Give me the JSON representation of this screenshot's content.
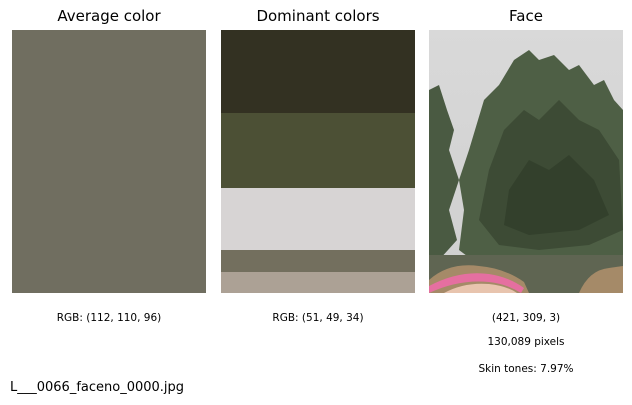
{
  "panels": {
    "average": {
      "title": "Average color",
      "color": "#706e60",
      "caption": "RGB: (112, 110, 96)"
    },
    "dominant": {
      "title": "Dominant colors",
      "caption": "RGB: (51, 49, 34)",
      "stripes": [
        {
          "color": "#333122",
          "share": 0.316
        },
        {
          "color": "#4c5035",
          "share": 0.285
        },
        {
          "color": "#d7d4d4",
          "share": 0.236
        },
        {
          "color": "#736f5e",
          "share": 0.084
        },
        {
          "color": "#aca195",
          "share": 0.079
        }
      ]
    },
    "face": {
      "title": "Face",
      "dims": "(421, 309, 3)",
      "pixels": "130,089 pixels",
      "skin": "Skin tones: 7.97%"
    }
  },
  "file_name": "L___0066_faceno_0000.jpg"
}
